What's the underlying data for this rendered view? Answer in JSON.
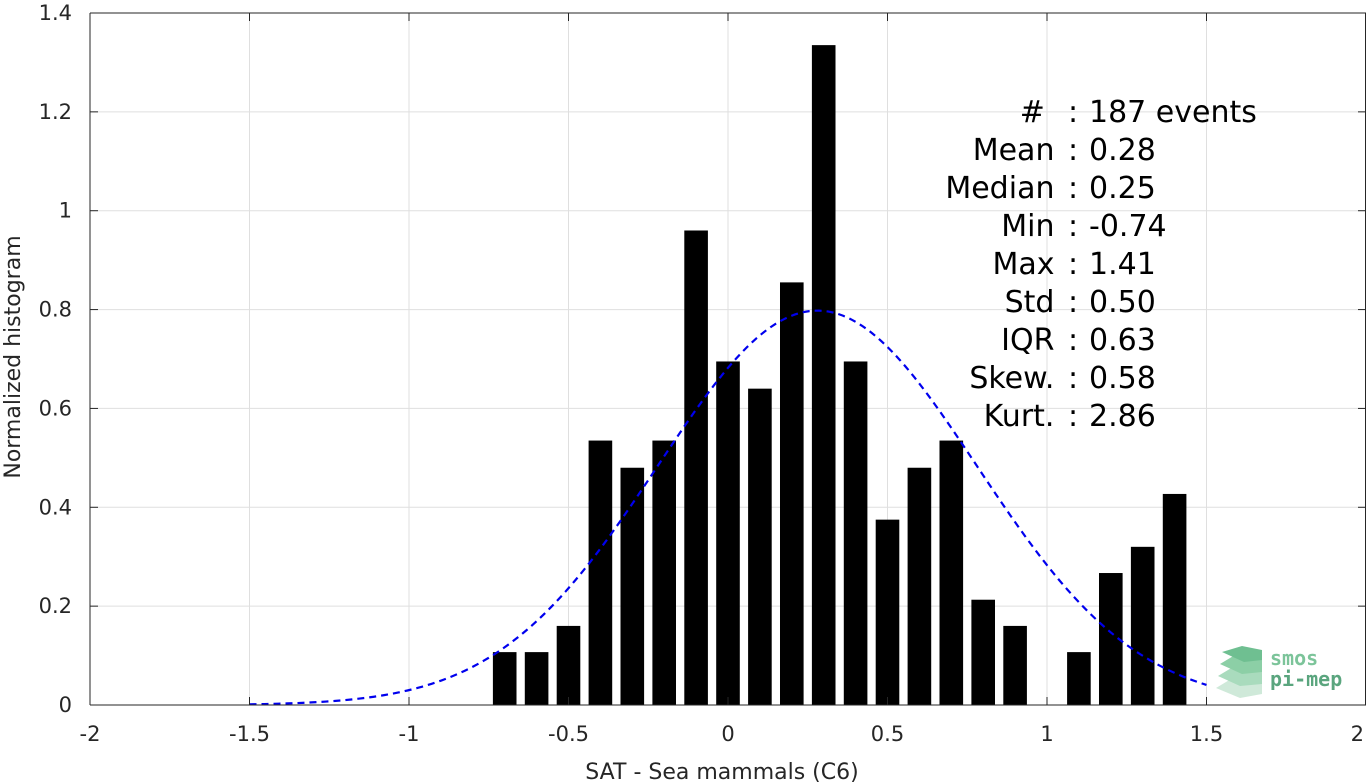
{
  "chart_data": {
    "type": "bar",
    "title": "",
    "xlabel": "SAT - Sea mammals (C6)",
    "ylabel": "Normalized histogram",
    "xlim": [
      -2,
      2
    ],
    "ylim": [
      0,
      1.4
    ],
    "x_ticks": [
      "-2",
      "-1.5",
      "-1",
      "-0.5",
      "0",
      "0.5",
      "1",
      "1.5",
      "2"
    ],
    "y_ticks": [
      "0",
      "0.2",
      "0.4",
      "0.6",
      "0.8",
      "1",
      "1.2",
      "1.4"
    ],
    "grid": true,
    "bin_centers": [
      -0.7,
      -0.6,
      -0.5,
      -0.4,
      -0.3,
      -0.2,
      -0.1,
      0.0,
      0.1,
      0.2,
      0.3,
      0.4,
      0.5,
      0.6,
      0.7,
      0.8,
      0.9,
      1.0,
      1.1,
      1.2,
      1.3,
      1.4
    ],
    "values": [
      0.107,
      0.107,
      0.16,
      0.535,
      0.48,
      0.535,
      0.96,
      0.695,
      0.64,
      0.855,
      1.335,
      0.695,
      0.375,
      0.48,
      0.535,
      0.213,
      0.16,
      0,
      0.107,
      0.267,
      0.32,
      0.427
    ],
    "bar_color": "#000000",
    "fit_curve": {
      "style": "dashed",
      "color": "#0000ee",
      "mean": 0.28,
      "std": 0.5,
      "range": [
        -1.5,
        1.5
      ]
    },
    "stats": [
      {
        "label": "#  ",
        "sep": ":",
        "value": "187 events"
      },
      {
        "label": "Mean ",
        "sep": ":",
        "value": "0.28"
      },
      {
        "label": "Median ",
        "sep": ":",
        "value": "0.25"
      },
      {
        "label": "Min ",
        "sep": ":",
        "value": "-0.74"
      },
      {
        "label": "Max ",
        "sep": ":",
        "value": "1.41"
      },
      {
        "label": "Std ",
        "sep": ":",
        "value": "0.50"
      },
      {
        "label": "IQR ",
        "sep": ":",
        "value": "0.63"
      },
      {
        "label": "Skew. ",
        "sep": ":",
        "value": "0.58"
      },
      {
        "label": "Kurt. ",
        "sep": ":",
        "value": "2.86"
      }
    ],
    "logo": {
      "line1": "smos",
      "line2": "pi-mep",
      "color1": "#7cc49a",
      "color2": "#5aa57e"
    }
  }
}
